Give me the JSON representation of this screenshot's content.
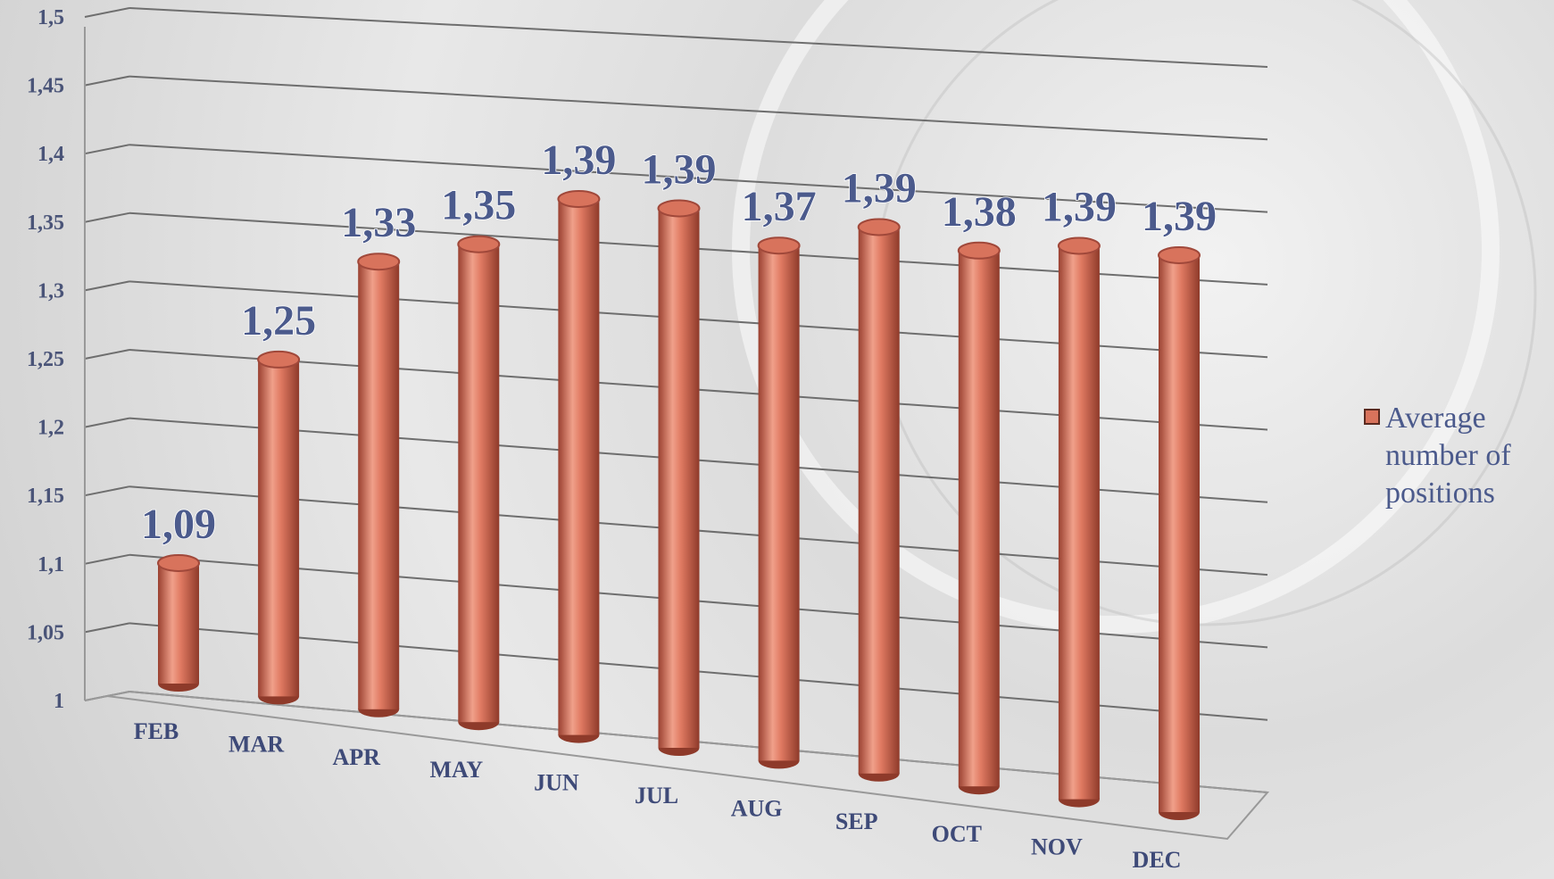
{
  "chart_data": {
    "type": "bar",
    "style": "3d-cylinder",
    "categories": [
      "FEB",
      "MAR",
      "APR",
      "MAY",
      "JUN",
      "JUL",
      "AUG",
      "SEP",
      "OCT",
      "NOV",
      "DEC"
    ],
    "series": [
      {
        "name": "Average number of positions",
        "color": "#d8735c",
        "values": [
          1.09,
          1.25,
          1.33,
          1.35,
          1.39,
          1.39,
          1.37,
          1.39,
          1.38,
          1.39,
          1.39
        ],
        "value_labels": [
          "1,09",
          "1,25",
          "1,33",
          "1,35",
          "1,39",
          "1,39",
          "1,37",
          "1,39",
          "1,38",
          "1,39",
          "1,39"
        ]
      }
    ],
    "ylim": [
      1,
      1.5
    ],
    "yticks": [
      1,
      {
        "value": 1.05,
        "label": "1,05"
      },
      {
        "value": 1.1,
        "label": "1,1"
      },
      {
        "value": 1.15,
        "label": "1,15"
      },
      {
        "value": 1.2,
        "label": "1,2"
      },
      {
        "value": 1.25,
        "label": "1,25"
      },
      {
        "value": 1.3,
        "label": "1,3"
      },
      {
        "value": 1.35,
        "label": "1,35"
      },
      {
        "value": 1.4,
        "label": "1,4"
      },
      {
        "value": 1.45,
        "label": "1,45"
      },
      {
        "value": 1.5,
        "label": "1,5"
      }
    ],
    "grid": true,
    "legend": "right"
  }
}
